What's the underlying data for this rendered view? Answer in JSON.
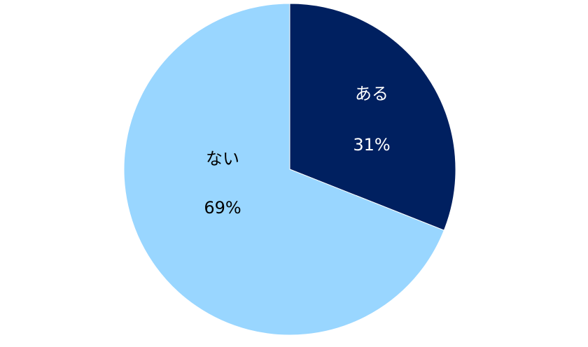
{
  "chart_data": {
    "type": "pie",
    "title": "",
    "start": "top",
    "direction": "clockwise",
    "slices": [
      {
        "label": "ある",
        "value": 31,
        "value_label": "31%",
        "color": "#002060",
        "text_color": "#ffffff"
      },
      {
        "label": "ない",
        "value": 69,
        "value_label": "69%",
        "color": "#99D6FF",
        "text_color": "#000000"
      }
    ],
    "legend": "none"
  }
}
